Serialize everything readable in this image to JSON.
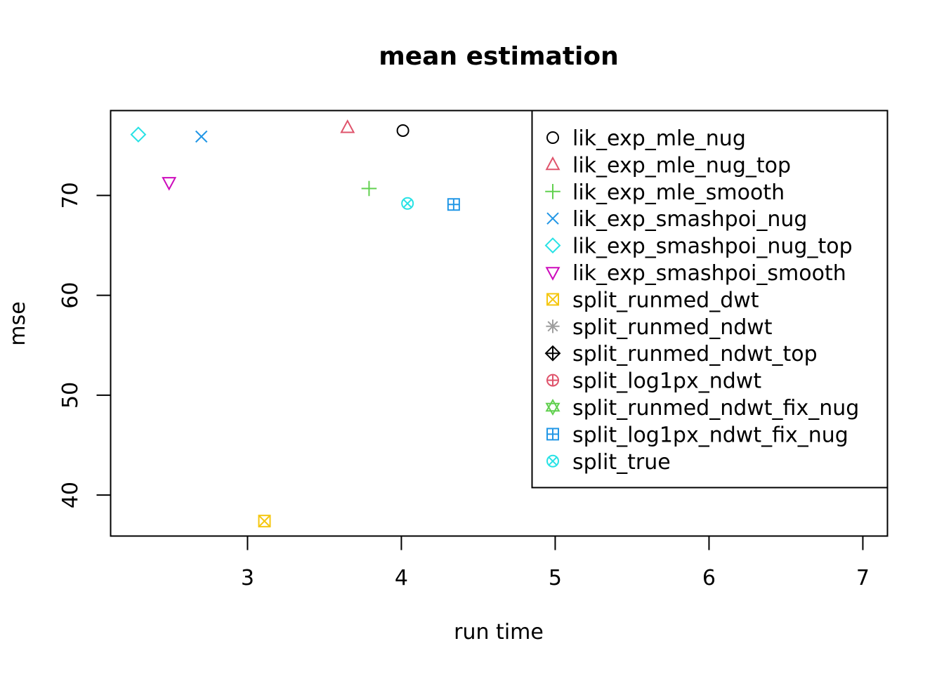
{
  "chart_data": {
    "type": "scatter",
    "title": "mean estimation",
    "xlabel": "run time",
    "ylabel": "mse",
    "xlim": [
      2.11,
      7.16
    ],
    "ylim": [
      35.9,
      78.5
    ],
    "x_ticks": [
      3,
      4,
      5,
      6,
      7
    ],
    "y_ticks": [
      40,
      50,
      60,
      70
    ],
    "grid": false,
    "legend_position": "top-right",
    "series": [
      {
        "name": "lik_exp_mle_nug",
        "color": "#000000",
        "marker": "circle",
        "x": 4.01,
        "y": 76.5
      },
      {
        "name": "lik_exp_mle_nug_top",
        "color": "#DF536B",
        "marker": "triangle-up",
        "x": 3.65,
        "y": 76.8
      },
      {
        "name": "lik_exp_mle_smooth",
        "color": "#61D04F",
        "marker": "plus",
        "x": 3.79,
        "y": 70.7
      },
      {
        "name": "lik_exp_smashpoi_nug",
        "color": "#2297E6",
        "marker": "cross",
        "x": 2.7,
        "y": 75.9
      },
      {
        "name": "lik_exp_smashpoi_nug_top",
        "color": "#28E2E5",
        "marker": "diamond",
        "x": 2.29,
        "y": 76.1
      },
      {
        "name": "lik_exp_smashpoi_smooth",
        "color": "#CD0BBC",
        "marker": "triangle-down",
        "x": 2.49,
        "y": 71.3
      },
      {
        "name": "split_runmed_dwt",
        "color": "#F5C710",
        "marker": "square-x",
        "x": 3.11,
        "y": 37.4
      },
      {
        "name": "split_runmed_ndwt",
        "color": "#9E9E9E",
        "marker": "asterisk",
        "x": null,
        "y": null
      },
      {
        "name": "split_runmed_ndwt_top",
        "color": "#000000",
        "marker": "diamond-plus",
        "x": null,
        "y": null
      },
      {
        "name": "split_log1px_ndwt",
        "color": "#DF536B",
        "marker": "circle-plus",
        "x": null,
        "y": null
      },
      {
        "name": "split_runmed_ndwt_fix_nug",
        "color": "#61D04F",
        "marker": "star-of-david",
        "x": null,
        "y": null
      },
      {
        "name": "split_log1px_ndwt_fix_nug",
        "color": "#2297E6",
        "marker": "square-plus",
        "x": 4.34,
        "y": 69.1
      },
      {
        "name": "split_true",
        "color": "#28E2E5",
        "marker": "circle-x",
        "x": 4.04,
        "y": 69.2
      }
    ]
  }
}
